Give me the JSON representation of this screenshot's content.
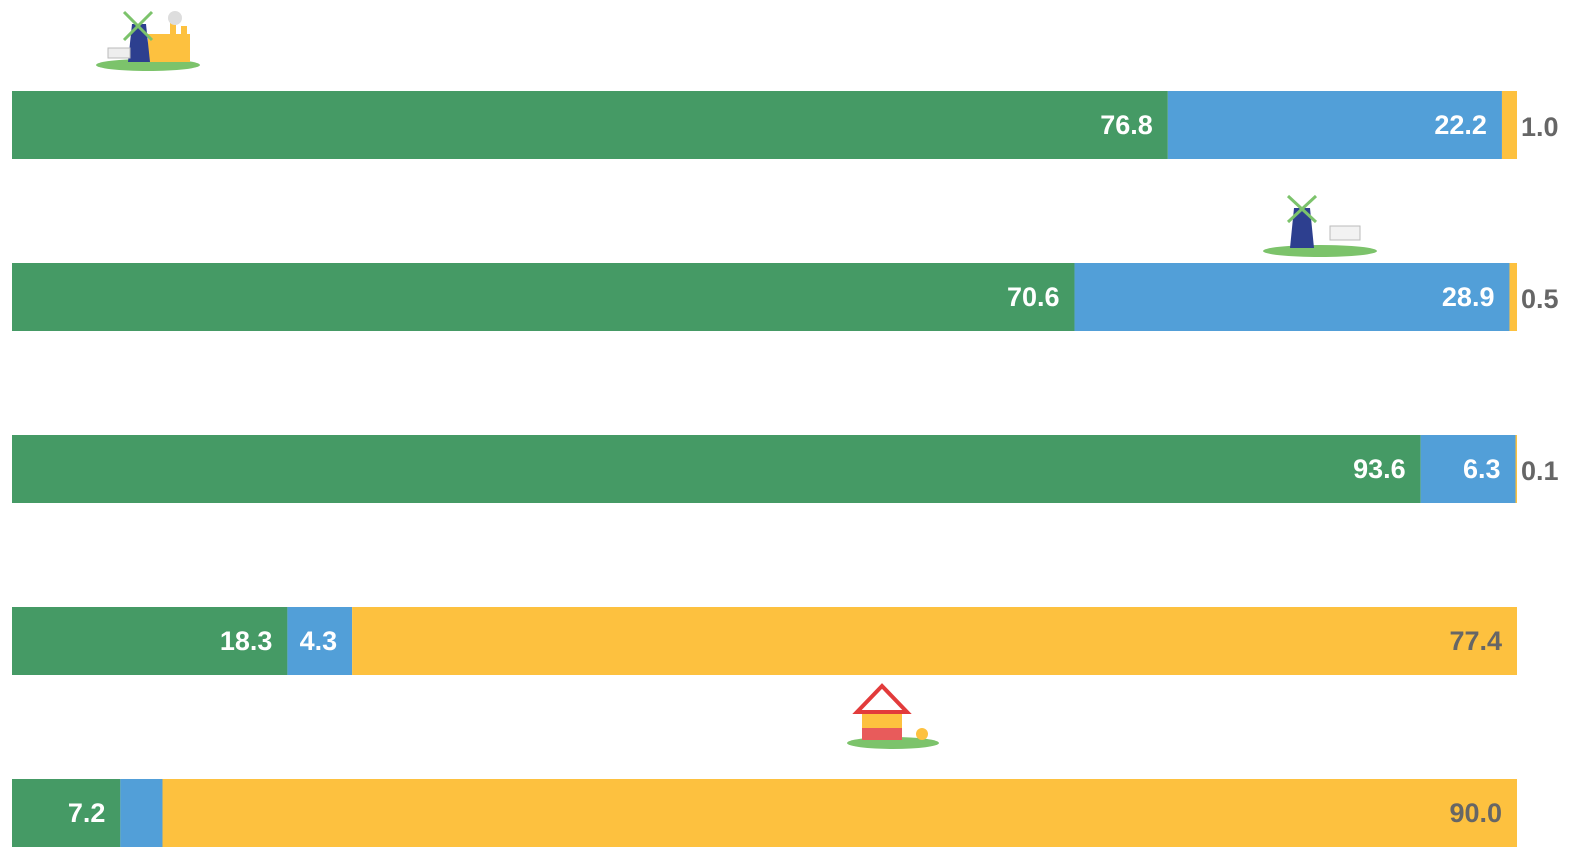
{
  "chart_data": {
    "type": "stacked-bar-horizontal",
    "categories": [
      null,
      null,
      null,
      null,
      null
    ],
    "xlim": [
      0,
      100
    ],
    "series": [
      {
        "color": "#459a65",
        "values": [
          76.8,
          70.6,
          93.6,
          18.3,
          7.2
        ]
      },
      {
        "color": "#529fd8",
        "values": [
          22.2,
          28.9,
          6.3,
          4.3,
          2.8
        ]
      },
      {
        "color": "#fdc13f",
        "values": [
          1.0,
          0.5,
          0.1,
          77.4,
          90.0
        ],
        "value_labels": [
          "1.0",
          "0.5",
          "0.1",
          "77.4",
          "90.0"
        ]
      }
    ]
  }
}
